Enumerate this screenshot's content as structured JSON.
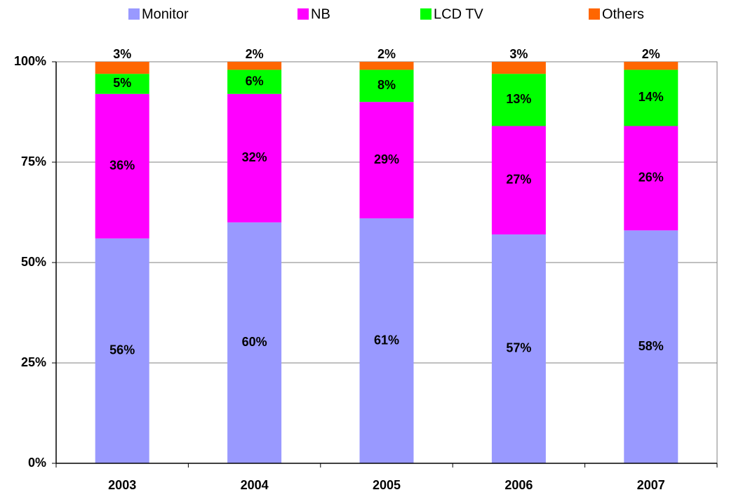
{
  "chart_data": {
    "type": "stacked_bar",
    "categories": [
      "2003",
      "2004",
      "2005",
      "2006",
      "2007"
    ],
    "series": [
      {
        "name": "Monitor",
        "color": "#9999ff",
        "values": [
          56,
          60,
          61,
          57,
          58
        ],
        "value_labels": [
          "56%",
          "60%",
          "61%",
          "57%",
          "58%"
        ]
      },
      {
        "name": "NB",
        "color": "#ff00ff",
        "values": [
          36,
          32,
          29,
          27,
          26
        ],
        "value_labels": [
          "36%",
          "32%",
          "29%",
          "27%",
          "26%"
        ]
      },
      {
        "name": "LCD TV",
        "color": "#00ff00",
        "values": [
          5,
          6,
          8,
          13,
          14
        ],
        "value_labels": [
          "5%",
          "6%",
          "8%",
          "13%",
          "14%"
        ]
      },
      {
        "name": "Others",
        "color": "#ff6600",
        "values": [
          3,
          2,
          2,
          3,
          2
        ],
        "value_labels": [
          "3%",
          "2%",
          "2%",
          "3%",
          "2%"
        ]
      }
    ],
    "ylim": [
      0,
      100
    ],
    "yticks": [
      {
        "value": 0,
        "label": "0%"
      },
      {
        "value": 25,
        "label": "25%"
      },
      {
        "value": 50,
        "label": "50%"
      },
      {
        "value": 75,
        "label": "75%"
      },
      {
        "value": 100,
        "label": "100%"
      }
    ],
    "grid": true,
    "legend": "top"
  }
}
